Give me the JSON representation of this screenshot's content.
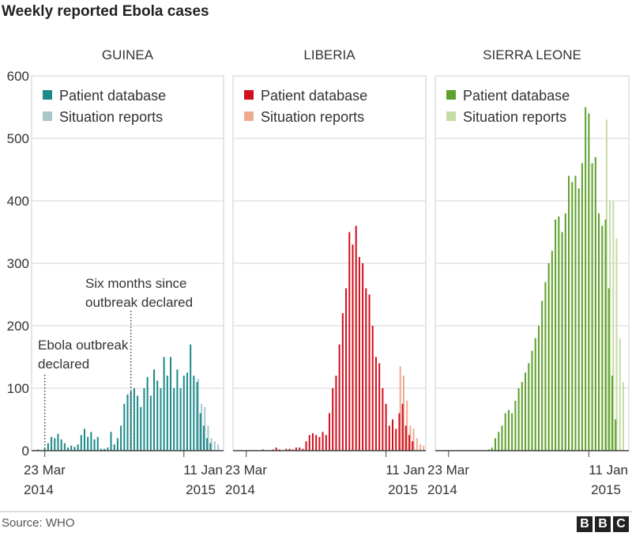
{
  "chart_data": {
    "type": "bar",
    "title": "Weekly reported Ebola cases",
    "source": "Source: WHO",
    "logo": [
      "B",
      "B",
      "C"
    ],
    "ylim": [
      0,
      600
    ],
    "yticks": [
      0,
      100,
      200,
      300,
      400,
      500,
      600
    ],
    "grid": true,
    "x_start_label": [
      "23 Mar",
      "2014"
    ],
    "x_end_label": [
      "11 Jan",
      "2015"
    ],
    "legend_labels": [
      "Patient database",
      "Situation reports"
    ],
    "legend_position": "top-left",
    "week_count": 57,
    "start_index": 3,
    "end_index": 45,
    "panels": [
      {
        "title": "GUINEA",
        "colors": {
          "patient_database": "#1c8a8a",
          "situation_reports": "#a7c7cb"
        },
        "patient_database": [
          1,
          2,
          1,
          3,
          12,
          22,
          20,
          27,
          18,
          12,
          5,
          8,
          6,
          10,
          25,
          35,
          22,
          30,
          18,
          22,
          3,
          3,
          5,
          30,
          10,
          20,
          40,
          75,
          90,
          95,
          100,
          88,
          70,
          100,
          118,
          88,
          130,
          112,
          100,
          150,
          120,
          150,
          100,
          130,
          100,
          120,
          125,
          170,
          120,
          110,
          60,
          40,
          20,
          12,
          0,
          0,
          0
        ],
        "situation_reports": [
          0,
          0,
          0,
          0,
          0,
          0,
          0,
          0,
          0,
          0,
          0,
          0,
          0,
          0,
          0,
          0,
          0,
          0,
          0,
          0,
          0,
          0,
          0,
          0,
          0,
          0,
          0,
          0,
          0,
          0,
          0,
          0,
          0,
          0,
          0,
          0,
          0,
          0,
          0,
          0,
          0,
          0,
          0,
          0,
          0,
          0,
          0,
          0,
          0,
          115,
          75,
          70,
          40,
          20,
          15,
          10,
          0
        ],
        "annotations": [
          {
            "text": [
              "Ebola outbreak",
              "declared"
            ],
            "week": 3
          },
          {
            "text": [
              "Six months since",
              "outbreak declared"
            ],
            "week": 29
          }
        ]
      },
      {
        "title": "LIBERIA",
        "colors": {
          "patient_database": "#d0101e",
          "situation_reports": "#efab92"
        },
        "patient_database": [
          0,
          0,
          0,
          0,
          0,
          0,
          0,
          0,
          2,
          0,
          0,
          2,
          5,
          2,
          0,
          3,
          3,
          2,
          5,
          5,
          3,
          15,
          25,
          28,
          25,
          22,
          30,
          25,
          60,
          100,
          120,
          170,
          220,
          260,
          350,
          330,
          360,
          310,
          300,
          260,
          250,
          200,
          150,
          140,
          100,
          75,
          40,
          50,
          35,
          60,
          75,
          40,
          25,
          15,
          0,
          0,
          0
        ],
        "situation_reports": [
          0,
          0,
          0,
          0,
          0,
          0,
          0,
          0,
          0,
          0,
          0,
          0,
          0,
          0,
          0,
          0,
          0,
          0,
          0,
          0,
          0,
          0,
          0,
          0,
          0,
          0,
          0,
          0,
          0,
          0,
          0,
          0,
          0,
          0,
          0,
          0,
          0,
          0,
          0,
          0,
          0,
          0,
          0,
          0,
          0,
          0,
          0,
          0,
          0,
          135,
          120,
          80,
          40,
          35,
          20,
          10,
          8
        ]
      },
      {
        "title": "SIERRA LEONE",
        "colors": {
          "patient_database": "#5ea12c",
          "situation_reports": "#c5dca5"
        },
        "patient_database": [
          0,
          0,
          0,
          0,
          0,
          0,
          0,
          0,
          0,
          0,
          0,
          0,
          0,
          0,
          0,
          2,
          5,
          20,
          30,
          40,
          60,
          65,
          60,
          80,
          100,
          110,
          125,
          140,
          160,
          180,
          200,
          240,
          270,
          300,
          320,
          370,
          375,
          350,
          380,
          440,
          430,
          440,
          420,
          460,
          550,
          540,
          460,
          470,
          380,
          360,
          370,
          260,
          120,
          50,
          0,
          0,
          0
        ],
        "situation_reports": [
          0,
          0,
          0,
          0,
          0,
          0,
          0,
          0,
          0,
          0,
          0,
          0,
          0,
          0,
          0,
          0,
          0,
          0,
          0,
          0,
          0,
          0,
          0,
          0,
          0,
          0,
          0,
          0,
          0,
          0,
          0,
          0,
          0,
          0,
          0,
          0,
          0,
          0,
          0,
          0,
          0,
          0,
          0,
          0,
          0,
          0,
          0,
          0,
          0,
          0,
          530,
          400,
          400,
          340,
          180,
          110,
          0
        ]
      }
    ]
  }
}
